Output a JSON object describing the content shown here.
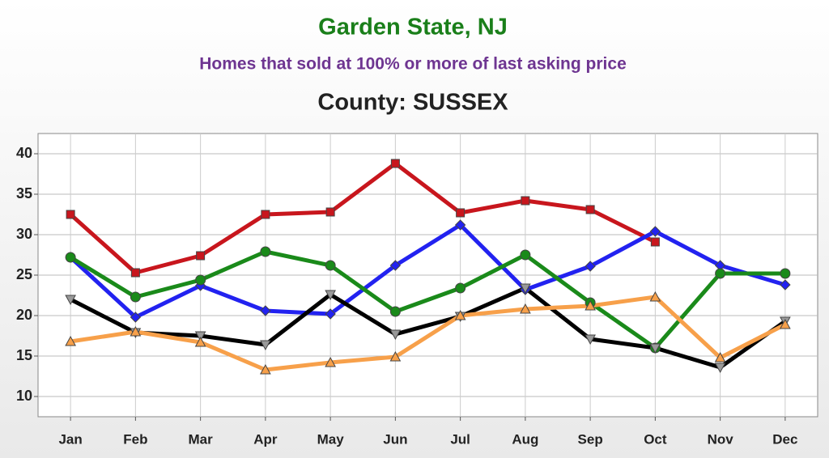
{
  "chart_data": {
    "type": "line",
    "title": "Garden State, NJ",
    "subtitle": "Homes that sold at 100% or more of last asking price",
    "county": "County: SUSSEX",
    "categories": [
      "Jan",
      "Feb",
      "Mar",
      "Apr",
      "May",
      "Jun",
      "Jul",
      "Aug",
      "Sep",
      "Oct",
      "Nov",
      "Dec"
    ],
    "series": [
      {
        "color": "#c8161d",
        "marker": "square",
        "values": [
          32.5,
          25.3,
          27.4,
          32.5,
          32.8,
          38.8,
          32.7,
          34.2,
          33.1,
          29.1,
          null,
          null
        ]
      },
      {
        "color": "#2222f0",
        "marker": "diamond",
        "values": [
          27.2,
          19.8,
          23.7,
          20.6,
          20.2,
          26.2,
          31.2,
          23.2,
          26.1,
          30.4,
          26.2,
          23.8
        ]
      },
      {
        "color": "#1a8a1a",
        "marker": "circle",
        "values": [
          27.2,
          22.3,
          24.4,
          27.9,
          26.2,
          20.5,
          23.4,
          27.5,
          21.6,
          16.0,
          25.2,
          25.2
        ]
      },
      {
        "color": "#000000",
        "marker": "triangle-down",
        "values": [
          22.0,
          17.9,
          17.5,
          16.4,
          22.6,
          17.7,
          19.9,
          23.4,
          17.1,
          16.0,
          13.6,
          19.3
        ]
      },
      {
        "color": "#f7a04a",
        "marker": "triangle-up",
        "values": [
          16.8,
          18.0,
          16.7,
          13.3,
          14.2,
          14.9,
          20.0,
          20.8,
          21.2,
          22.3,
          14.8,
          18.9
        ]
      }
    ],
    "ylim": [
      7.5,
      42.5
    ],
    "yticks": [
      10,
      15,
      20,
      25,
      30,
      35,
      40
    ],
    "grid": true
  }
}
